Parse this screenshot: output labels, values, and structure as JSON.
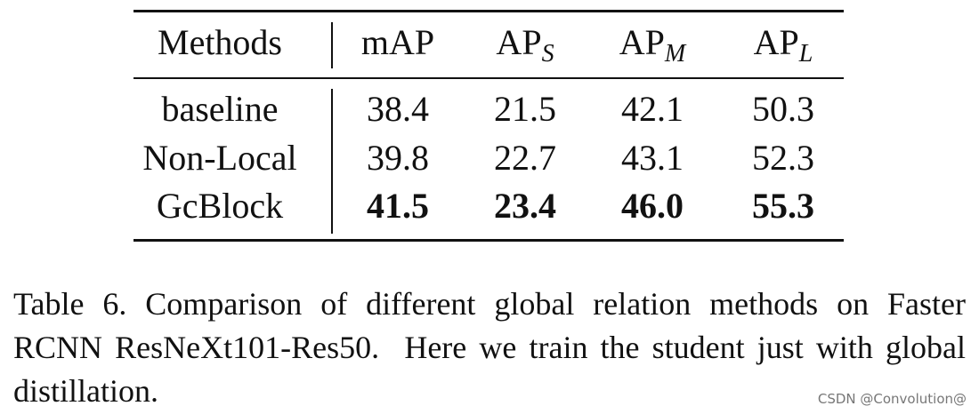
{
  "table": {
    "header": [
      {
        "text": "Methods"
      },
      {
        "text": "mAP"
      },
      {
        "text": "AP",
        "sub": "S"
      },
      {
        "text": "AP",
        "sub": "M"
      },
      {
        "text": "AP",
        "sub": "L"
      }
    ],
    "rows": [
      {
        "method": "baseline",
        "values": [
          "38.4",
          "21.5",
          "42.1",
          "50.3"
        ],
        "bold": false
      },
      {
        "method": "Non-Local",
        "values": [
          "39.8",
          "22.7",
          "43.1",
          "52.3"
        ],
        "bold": false
      },
      {
        "method": "GcBlock",
        "values": [
          "41.5",
          "23.4",
          "46.0",
          "55.3"
        ],
        "bold": true
      }
    ]
  },
  "caption": "Table 6. Comparison of different global relation methods on Faster RCNN ResNeXt101-Res50.  Here we train the student just with global distillation.",
  "watermark": "CSDN @Convolution@"
}
